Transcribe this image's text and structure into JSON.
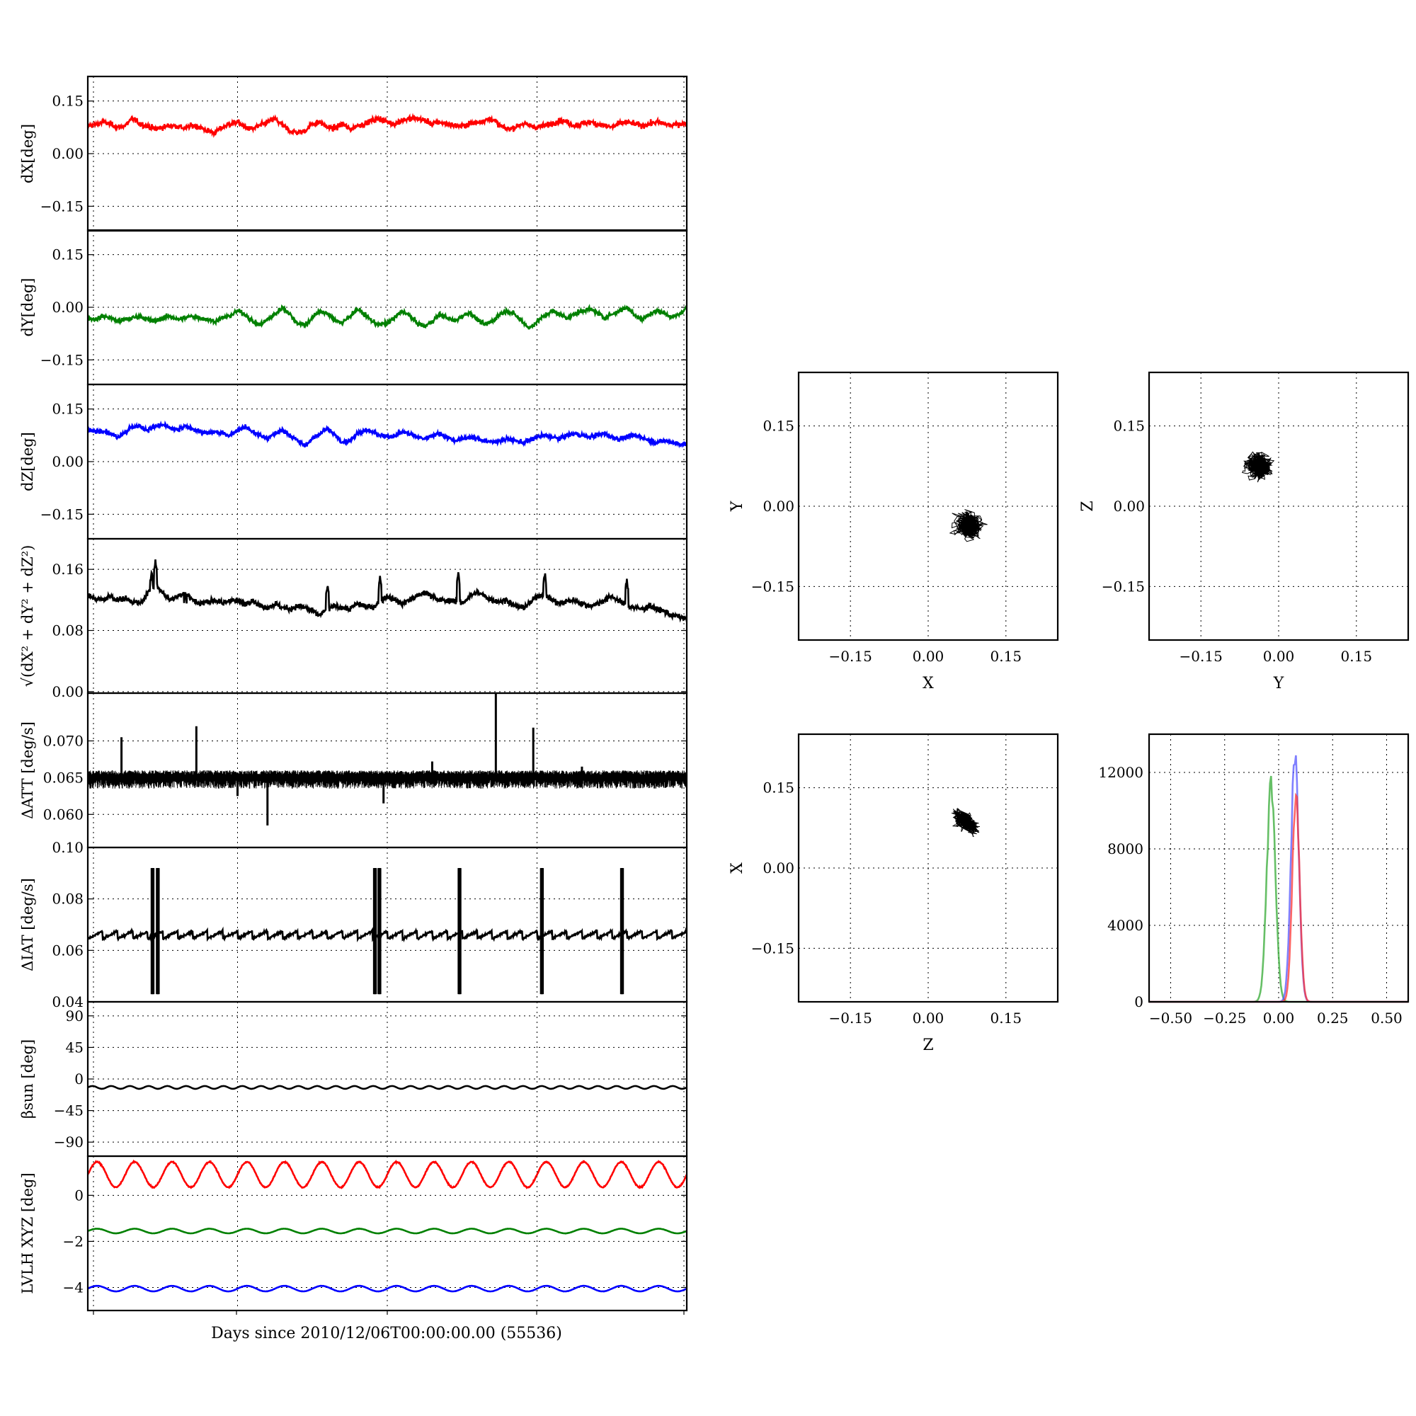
{
  "figure": {
    "xlabel": "Days since 2010/12/06T00:00:00.00 (55536)"
  },
  "chart_data": [
    {
      "id": "dx",
      "type": "line",
      "ylabel": "dX[deg]",
      "ylim": [
        -0.22,
        0.22
      ],
      "yticks": [
        -0.15,
        0.0,
        0.15
      ],
      "ytick_labels": [
        "−0.15",
        "0.00",
        "0.15"
      ],
      "xlim": [
        0,
        8
      ],
      "grid": true,
      "series": [
        {
          "color": "#ff0000",
          "kind": "noise",
          "mean": 0.08,
          "amp": 0.018,
          "ripple": 0.012,
          "y": [
            0.08,
            0.082,
            0.09,
            0.085,
            0.075,
            0.08,
            0.1,
            0.085,
            0.078,
            0.07,
            0.075,
            0.08,
            0.078,
            0.072,
            0.08,
            0.075,
            0.065,
            0.06,
            0.075,
            0.085,
            0.09,
            0.075,
            0.07,
            0.08,
            0.09,
            0.1,
            0.08,
            0.065,
            0.06,
            0.065,
            0.085,
            0.09,
            0.075,
            0.072,
            0.085,
            0.07,
            0.08,
            0.085,
            0.095,
            0.1,
            0.09,
            0.085,
            0.095,
            0.1,
            0.1,
            0.095,
            0.085,
            0.09,
            0.085,
            0.08,
            0.078,
            0.085,
            0.09,
            0.095,
            0.1,
            0.08,
            0.07,
            0.075,
            0.085,
            0.08,
            0.075,
            0.08,
            0.085,
            0.095,
            0.09,
            0.08,
            0.085,
            0.09,
            0.085,
            0.08,
            0.075,
            0.085,
            0.09,
            0.085,
            0.08,
            0.085,
            0.09,
            0.085,
            0.08,
            0.085,
            0.085
          ]
        }
      ]
    },
    {
      "id": "dy",
      "type": "line",
      "ylabel": "dY[deg]",
      "ylim": [
        -0.22,
        0.22
      ],
      "yticks": [
        -0.15,
        0.0,
        0.15
      ],
      "ytick_labels": [
        "−0.15",
        "0.00",
        "0.15"
      ],
      "xlim": [
        0,
        8
      ],
      "grid": true,
      "series": [
        {
          "color": "#008000",
          "kind": "noise",
          "mean": -0.035,
          "amp": 0.015,
          "ripple": 0.01,
          "y": [
            -0.03,
            -0.035,
            -0.025,
            -0.03,
            -0.04,
            -0.035,
            -0.03,
            -0.025,
            -0.035,
            -0.04,
            -0.03,
            -0.025,
            -0.035,
            -0.03,
            -0.025,
            -0.03,
            -0.035,
            -0.04,
            -0.03,
            -0.025,
            -0.01,
            -0.02,
            -0.04,
            -0.05,
            -0.035,
            -0.02,
            0.0,
            -0.02,
            -0.045,
            -0.05,
            -0.03,
            -0.01,
            -0.02,
            -0.035,
            -0.045,
            -0.025,
            -0.005,
            -0.02,
            -0.04,
            -0.05,
            -0.045,
            -0.03,
            -0.01,
            -0.025,
            -0.045,
            -0.055,
            -0.04,
            -0.02,
            -0.03,
            -0.04,
            -0.025,
            -0.015,
            -0.035,
            -0.05,
            -0.04,
            -0.02,
            -0.01,
            -0.02,
            -0.04,
            -0.06,
            -0.04,
            -0.025,
            -0.01,
            -0.02,
            -0.03,
            -0.02,
            -0.01,
            -0.005,
            -0.015,
            -0.03,
            -0.02,
            -0.01,
            0.0,
            -0.02,
            -0.035,
            -0.02,
            -0.01,
            -0.015,
            -0.03,
            -0.02,
            0.0
          ]
        }
      ]
    },
    {
      "id": "dz",
      "type": "line",
      "ylabel": "dZ[deg]",
      "ylim": [
        -0.22,
        0.22
      ],
      "yticks": [
        -0.15,
        0.0,
        0.15
      ],
      "ytick_labels": [
        "−0.15",
        "0.00",
        "0.15"
      ],
      "xlim": [
        0,
        8
      ],
      "grid": true,
      "series": [
        {
          "color": "#0000ff",
          "kind": "noise",
          "mean": 0.075,
          "amp": 0.015,
          "ripple": 0.01,
          "y": [
            0.09,
            0.085,
            0.09,
            0.08,
            0.07,
            0.085,
            0.1,
            0.1,
            0.09,
            0.1,
            0.105,
            0.095,
            0.09,
            0.1,
            0.095,
            0.085,
            0.08,
            0.085,
            0.08,
            0.075,
            0.09,
            0.1,
            0.085,
            0.075,
            0.065,
            0.08,
            0.09,
            0.075,
            0.06,
            0.045,
            0.065,
            0.08,
            0.095,
            0.075,
            0.055,
            0.06,
            0.08,
            0.09,
            0.085,
            0.075,
            0.07,
            0.075,
            0.085,
            0.08,
            0.07,
            0.065,
            0.075,
            0.08,
            0.07,
            0.06,
            0.065,
            0.07,
            0.065,
            0.06,
            0.055,
            0.06,
            0.065,
            0.06,
            0.055,
            0.06,
            0.07,
            0.075,
            0.07,
            0.065,
            0.075,
            0.08,
            0.075,
            0.07,
            0.075,
            0.08,
            0.07,
            0.065,
            0.07,
            0.075,
            0.07,
            0.06,
            0.055,
            0.06,
            0.055,
            0.05,
            0.05
          ]
        }
      ]
    },
    {
      "id": "dr",
      "type": "line",
      "ylabel": "√(dX² + dY² + dZ²)",
      "ylim": [
        -0.002,
        0.2
      ],
      "yticks": [
        0.0,
        0.08,
        0.16
      ],
      "ytick_labels": [
        "0.00",
        "0.08",
        "0.16"
      ],
      "xlim": [
        0,
        8
      ],
      "grid": true,
      "series": [
        {
          "color": "#000000",
          "kind": "noise",
          "mean": 0.12,
          "amp": 0.008,
          "ripple": 0.006,
          "y": [
            0.125,
            0.122,
            0.12,
            0.125,
            0.12,
            0.122,
            0.118,
            0.115,
            0.128,
            0.14,
            0.13,
            0.12,
            0.125,
            0.13,
            0.12,
            0.115,
            0.118,
            0.12,
            0.115,
            0.12,
            0.118,
            0.115,
            0.12,
            0.112,
            0.11,
            0.115,
            0.11,
            0.108,
            0.112,
            0.11,
            0.105,
            0.1,
            0.108,
            0.112,
            0.11,
            0.108,
            0.115,
            0.112,
            0.11,
            0.118,
            0.125,
            0.12,
            0.115,
            0.12,
            0.125,
            0.13,
            0.125,
            0.12,
            0.118,
            0.12,
            0.115,
            0.125,
            0.13,
            0.125,
            0.12,
            0.118,
            0.12,
            0.112,
            0.11,
            0.115,
            0.125,
            0.128,
            0.12,
            0.115,
            0.118,
            0.12,
            0.115,
            0.112,
            0.115,
            0.12,
            0.125,
            0.118,
            0.112,
            0.11,
            0.108,
            0.112,
            0.108,
            0.105,
            0.1,
            0.098,
            0.095
          ],
          "spikes": [
            [
              0.85,
              0.155
            ],
            [
              0.9,
              0.17
            ],
            [
              1.3,
              0.13
            ],
            [
              3.2,
              0.14
            ],
            [
              3.9,
              0.15
            ],
            [
              4.95,
              0.155
            ],
            [
              6.1,
              0.155
            ],
            [
              7.2,
              0.145
            ]
          ]
        }
      ]
    },
    {
      "id": "datt",
      "type": "line",
      "ylabel": "ΔATT [deg/s]",
      "ylim": [
        0.0555,
        0.0765
      ],
      "yticks": [
        0.06,
        0.065,
        0.07
      ],
      "ytick_labels": [
        "0.060",
        "0.065",
        "0.070"
      ],
      "xlim": [
        0,
        8
      ],
      "grid": true,
      "series": [
        {
          "color": "#000000",
          "kind": "band",
          "mean": 0.0655,
          "lo": 0.0635,
          "hi": 0.066,
          "spikes": [
            [
              0.45,
              0.0705
            ],
            [
              1.45,
              0.072
            ],
            [
              2.4,
              0.0585
            ],
            [
              5.45,
              0.0775
            ],
            [
              5.95,
              0.0718
            ],
            [
              3.95,
              0.0615
            ],
            [
              2.0,
              0.0625
            ],
            [
              4.6,
              0.0672
            ],
            [
              6.6,
              0.0665
            ]
          ]
        }
      ]
    },
    {
      "id": "diat",
      "type": "line",
      "ylabel": "ΔIAT [deg/s]",
      "ylim": [
        0.04,
        0.1
      ],
      "yticks": [
        0.04,
        0.06,
        0.08,
        0.1
      ],
      "ytick_labels": [
        "0.04",
        "0.06",
        "0.08",
        "0.10"
      ],
      "xlim": [
        0,
        8
      ],
      "grid": true,
      "series": [
        {
          "color": "#000000",
          "kind": "saw",
          "base": 0.0645,
          "top": 0.0675,
          "period": 0.2,
          "bursts": [
            0.85,
            0.92,
            3.82,
            3.88,
            4.95,
            6.05,
            7.12
          ],
          "burst_lo": 0.043,
          "burst_hi": 0.092
        }
      ]
    },
    {
      "id": "beta",
      "type": "line",
      "ylabel": "βsun [deg]",
      "ylim": [
        -110,
        110
      ],
      "yticks": [
        -90,
        -45,
        0,
        45,
        90
      ],
      "ytick_labels": [
        "−90",
        "−45",
        "0",
        "45",
        "90"
      ],
      "xlim": [
        0,
        8
      ],
      "grid": true,
      "series": [
        {
          "color": "#000000",
          "kind": "sine",
          "mean": -12,
          "amp": 2,
          "period": 0.25
        }
      ]
    },
    {
      "id": "lvlh",
      "type": "line",
      "ylabel": "LVLH XYZ [deg]",
      "ylim": [
        -5,
        1.7
      ],
      "yticks": [
        -4,
        -2,
        0
      ],
      "ytick_labels": [
        "−4",
        "−2",
        "0"
      ],
      "xlim": [
        0,
        8
      ],
      "grid": true,
      "series": [
        {
          "color": "#ff0000",
          "kind": "sine",
          "mean": 0.9,
          "amp": 0.55,
          "period": 0.5
        },
        {
          "color": "#008000",
          "kind": "sine",
          "mean": -1.55,
          "amp": 0.1,
          "period": 0.5
        },
        {
          "color": "#0000ff",
          "kind": "sine",
          "mean": -4.05,
          "amp": 0.12,
          "period": 0.5
        }
      ]
    },
    {
      "id": "xy",
      "type": "scatter",
      "xlabel": "X",
      "ylabel": "Y",
      "xlim": [
        -0.25,
        0.25
      ],
      "ylim": [
        -0.25,
        0.25
      ],
      "ticks": [
        -0.15,
        0.0,
        0.15
      ],
      "tick_labels": [
        "−0.15",
        "0.00",
        "0.15"
      ],
      "grid": true,
      "center": [
        0.08,
        -0.035
      ],
      "spread": [
        0.022,
        0.02
      ],
      "color": "#000000"
    },
    {
      "id": "yz",
      "type": "scatter",
      "xlabel": "Y",
      "ylabel": "Z",
      "xlim": [
        -0.25,
        0.25
      ],
      "ylim": [
        -0.25,
        0.25
      ],
      "ticks": [
        -0.15,
        0.0,
        0.15
      ],
      "tick_labels": [
        "−0.15",
        "0.00",
        "0.15"
      ],
      "grid": true,
      "center": [
        -0.035,
        0.075
      ],
      "spread": [
        0.02,
        0.02
      ],
      "color": "#000000"
    },
    {
      "id": "zx",
      "type": "scatter",
      "xlabel": "Z",
      "ylabel": "X",
      "xlim": [
        -0.25,
        0.25
      ],
      "ylim": [
        -0.25,
        0.25
      ],
      "ticks": [
        -0.15,
        0.0,
        0.15
      ],
      "tick_labels": [
        "−0.15",
        "0.00",
        "0.15"
      ],
      "grid": true,
      "center": [
        0.075,
        0.085
      ],
      "spread": [
        0.022,
        0.012
      ],
      "tilt": -0.6,
      "color": "#000000"
    },
    {
      "id": "hist",
      "type": "area",
      "xlim": [
        -0.6,
        0.6
      ],
      "ylim": [
        0,
        14000
      ],
      "xticks": [
        -0.5,
        -0.25,
        0.0,
        0.25,
        0.5
      ],
      "xtick_labels": [
        "−0.50",
        "−0.25",
        "0.00",
        "0.25",
        "0.50"
      ],
      "yticks": [
        0,
        4000,
        8000,
        12000
      ],
      "ytick_labels": [
        "0",
        "4000",
        "8000",
        "12000"
      ],
      "grid": true,
      "series": [
        {
          "color": "#33aa33",
          "center": -0.035,
          "sigma": 0.02,
          "peak": 11600
        },
        {
          "color": "#5555ff",
          "center": 0.075,
          "sigma": 0.018,
          "peak": 13200
        },
        {
          "color": "#ff3333",
          "center": 0.08,
          "sigma": 0.017,
          "peak": 11200
        }
      ]
    }
  ]
}
